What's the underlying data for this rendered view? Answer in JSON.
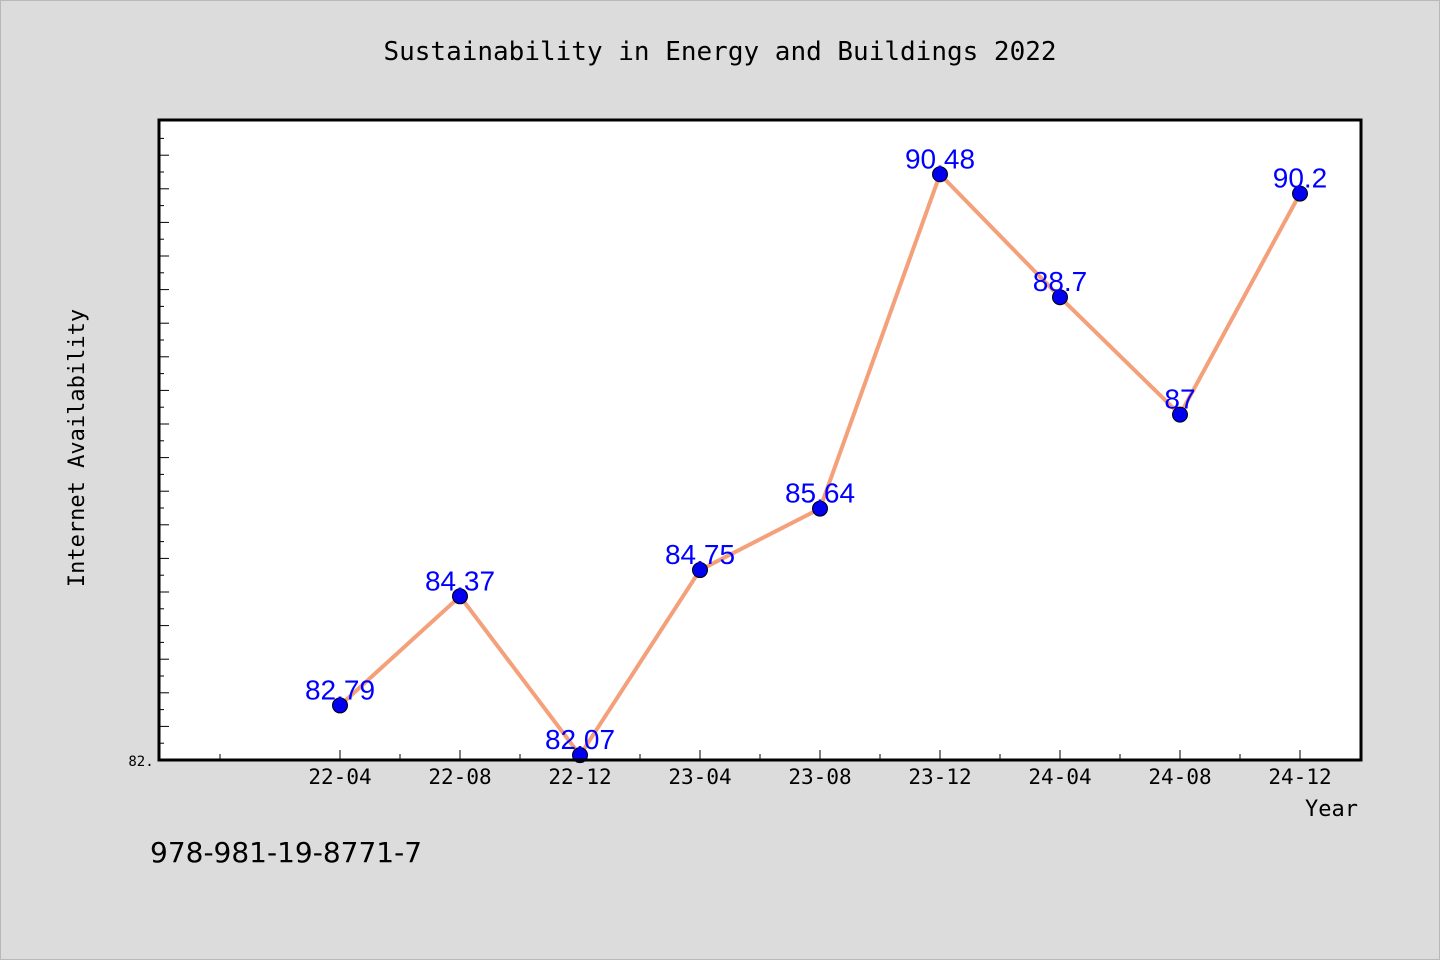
{
  "chart_data": {
    "type": "line",
    "title": "Sustainability in Energy and Buildings 2022",
    "xlabel": "Year",
    "ylabel": "Internet Availability",
    "categories": [
      "22-04",
      "22-08",
      "22-12",
      "23-04",
      "23-08",
      "23-12",
      "24-04",
      "24-08",
      "24-12"
    ],
    "series": [
      {
        "values": [
          82.79,
          84.37,
          82.07,
          84.75,
          85.64,
          90.48,
          88.7,
          87,
          90.2
        ],
        "data_labels": [
          "82.79",
          "84.37",
          "82.07",
          "84.75",
          "85.64",
          "90.48",
          "88.7",
          "87",
          "90.2"
        ],
        "line_color": "#f4a07a",
        "marker_color": "#0000ee"
      }
    ],
    "ymin_tick_label": "82.",
    "ylim": [
      82.0,
      91.5
    ],
    "grid": false,
    "legend": "none"
  },
  "footer": {
    "isbn": "978-981-19-8771-7"
  },
  "colors": {
    "background": "#dcdcdc",
    "plot_background": "#ffffff",
    "data_label": "#0000ff"
  }
}
